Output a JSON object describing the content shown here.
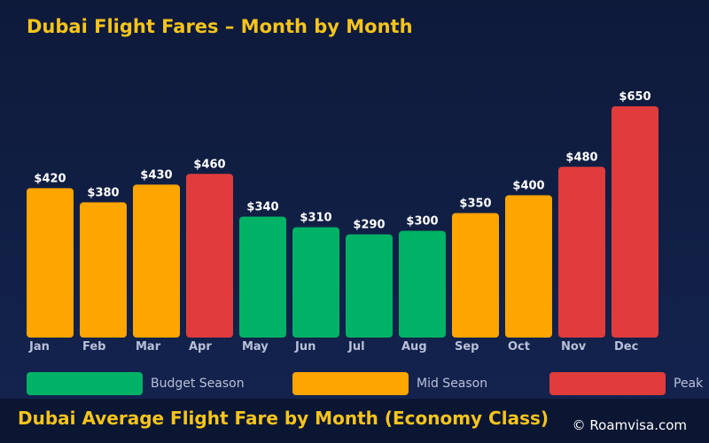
{
  "chart_data": {
    "type": "bar",
    "title": "Dubai Flight Fares – Month by Month",
    "categories": [
      "Jan",
      "Feb",
      "Mar",
      "Apr",
      "May",
      "Jun",
      "Jul",
      "Aug",
      "Sep",
      "Oct",
      "Nov",
      "Dec"
    ],
    "values": [
      420,
      380,
      430,
      460,
      340,
      310,
      290,
      300,
      350,
      400,
      480,
      650
    ],
    "value_labels": [
      "$420",
      "$380",
      "$430",
      "$460",
      "$340",
      "$310",
      "$290",
      "$300",
      "$350",
      "$400",
      "$480",
      "$650"
    ],
    "season": [
      "mid",
      "mid",
      "mid",
      "peak",
      "budget",
      "budget",
      "budget",
      "budget",
      "mid",
      "mid",
      "peak",
      "peak"
    ],
    "ylim": [
      0,
      650
    ],
    "grid": false,
    "legend": [
      {
        "key": "budget",
        "label": "Budget Season",
        "color": "#00b265"
      },
      {
        "key": "mid",
        "label": "Mid Season",
        "color": "#ffa500"
      },
      {
        "key": "peak",
        "label": "Peak",
        "color": "#e03c3c"
      }
    ],
    "legend_placement": "bottom"
  },
  "footer": {
    "title": "Dubai Average Flight Fare by Month (Economy Class)",
    "credit": "© Roamvisa.com"
  }
}
